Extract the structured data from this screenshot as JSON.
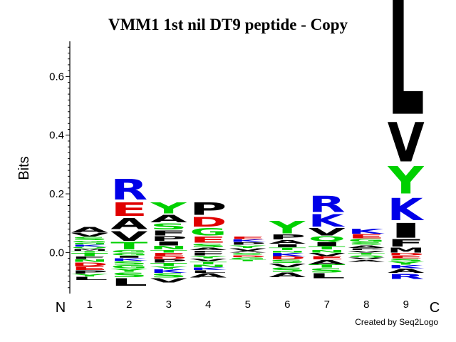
{
  "chart_data": {
    "type": "sequence-logo",
    "title": "VMM1 1st nil DT9 peptide - Copy",
    "ylabel": "Bits",
    "ylim": [
      -0.14,
      0.72
    ],
    "yticks": [
      "0.0",
      "0.2",
      "0.4",
      "0.6"
    ],
    "ytick_values": [
      0.0,
      0.2,
      0.4,
      0.6
    ],
    "start_label": "N",
    "end_label": "C",
    "credit": "Created by Seq2Logo",
    "colors": {
      "hydrophobic": "#000000",
      "polar": "#00d000",
      "basic": "#0000e8",
      "acidic": "#e00000"
    },
    "positions": [
      {
        "label": "1",
        "positive": [
          [
            "A",
            0.022
          ],
          [
            "V",
            0.014
          ],
          [
            "S",
            0.012
          ],
          [
            "G",
            0.008
          ],
          [
            "N",
            0.006
          ],
          [
            "K",
            0.008
          ],
          [
            "Q",
            0.006
          ],
          [
            "M",
            0.008
          ],
          [
            "T",
            0.006
          ]
        ],
        "negative": [
          [
            "T",
            0.012
          ],
          [
            "F",
            0.01
          ],
          [
            "N",
            0.01
          ],
          [
            "D",
            0.014
          ],
          [
            "E",
            0.014
          ],
          [
            "P",
            0.012
          ],
          [
            "Y",
            0.01
          ],
          [
            "L",
            0.012
          ]
        ]
      },
      {
        "label": "2",
        "positive": [
          [
            "R",
            0.085
          ],
          [
            "E",
            0.055
          ],
          [
            "A",
            0.045
          ],
          [
            "V",
            0.04
          ],
          [
            "T",
            0.03
          ],
          [
            "G",
            0.01
          ]
        ],
        "negative": [
          [
            "G",
            0.01
          ],
          [
            "I",
            0.008
          ],
          [
            "K",
            0.01
          ],
          [
            "S",
            0.014
          ],
          [
            "G",
            0.012
          ],
          [
            "Y",
            0.012
          ],
          [
            "S",
            0.018
          ],
          [
            "L",
            0.03
          ]
        ]
      },
      {
        "label": "3",
        "positive": [
          [
            "Y",
            0.045
          ],
          [
            "A",
            0.03
          ],
          [
            "S",
            0.025
          ],
          [
            "F",
            0.02
          ],
          [
            "P",
            0.018
          ],
          [
            "I",
            0.016
          ],
          [
            "N",
            0.014
          ],
          [
            "T",
            0.01
          ]
        ],
        "negative": [
          [
            "E",
            0.012
          ],
          [
            "D",
            0.01
          ],
          [
            "P",
            0.012
          ],
          [
            "T",
            0.012
          ],
          [
            "Y",
            0.01
          ],
          [
            "K",
            0.014
          ],
          [
            "S",
            0.016
          ],
          [
            "V",
            0.016
          ]
        ]
      },
      {
        "label": "4",
        "positive": [
          [
            "P",
            0.05
          ],
          [
            "D",
            0.04
          ],
          [
            "G",
            0.03
          ],
          [
            "E",
            0.025
          ],
          [
            "S",
            0.015
          ],
          [
            "A",
            0.01
          ],
          [
            "F",
            0.008
          ]
        ],
        "negative": [
          [
            "F",
            0.01
          ],
          [
            "Y",
            0.01
          ],
          [
            "V",
            0.01
          ],
          [
            "T",
            0.01
          ],
          [
            "N",
            0.01
          ],
          [
            "K",
            0.01
          ],
          [
            "L",
            0.01
          ],
          [
            "A",
            0.016
          ]
        ]
      },
      {
        "label": "5",
        "positive": [
          [
            "E",
            0.01
          ],
          [
            "K",
            0.01
          ],
          [
            "P",
            0.01
          ],
          [
            "Y",
            0.01
          ],
          [
            "V",
            0.01
          ],
          [
            "A",
            0.006
          ]
        ],
        "negative": [
          [
            "S",
            0.008
          ],
          [
            "D",
            0.008
          ],
          [
            "G",
            0.008
          ],
          [
            "T",
            0.006
          ]
        ]
      },
      {
        "label": "6",
        "positive": [
          [
            "Y",
            0.05
          ],
          [
            "P",
            0.02
          ],
          [
            "A",
            0.015
          ],
          [
            "I",
            0.012
          ],
          [
            "T",
            0.01
          ],
          [
            "N",
            0.008
          ]
        ],
        "negative": [
          [
            "K",
            0.012
          ],
          [
            "D",
            0.012
          ],
          [
            "S",
            0.012
          ],
          [
            "V",
            0.014
          ],
          [
            "S",
            0.016
          ],
          [
            "A",
            0.018
          ]
        ]
      },
      {
        "label": "7",
        "positive": [
          [
            "R",
            0.065
          ],
          [
            "K",
            0.05
          ],
          [
            "V",
            0.03
          ],
          [
            "Q",
            0.02
          ],
          [
            "I",
            0.016
          ],
          [
            "T",
            0.012
          ],
          [
            "N",
            0.01
          ]
        ],
        "negative": [
          [
            "V",
            0.012
          ],
          [
            "E",
            0.012
          ],
          [
            "A",
            0.016
          ],
          [
            "T",
            0.012
          ],
          [
            "S",
            0.016
          ],
          [
            "L",
            0.02
          ]
        ]
      },
      {
        "label": "8",
        "positive": [
          [
            "K",
            0.02
          ],
          [
            "E",
            0.016
          ],
          [
            "G",
            0.012
          ],
          [
            "S",
            0.01
          ],
          [
            "A",
            0.01
          ],
          [
            "P",
            0.008
          ],
          [
            "V",
            0.008
          ]
        ],
        "negative": [
          [
            "T",
            0.008
          ],
          [
            "Q",
            0.008
          ],
          [
            "V",
            0.008
          ],
          [
            "A",
            0.008
          ]
        ]
      },
      {
        "label": "9",
        "positive": [
          [
            "L",
            0.47
          ],
          [
            "V",
            0.16
          ],
          [
            "Y",
            0.11
          ],
          [
            "K",
            0.09
          ],
          [
            "I",
            0.06
          ],
          [
            "F",
            0.03
          ],
          [
            "M",
            0.02
          ]
        ],
        "negative": [
          [
            "D",
            0.01
          ],
          [
            "E",
            0.01
          ],
          [
            "S",
            0.01
          ],
          [
            "Y",
            0.012
          ],
          [
            "K",
            0.012
          ],
          [
            "A",
            0.016
          ],
          [
            "R",
            0.02
          ]
        ]
      }
    ]
  }
}
